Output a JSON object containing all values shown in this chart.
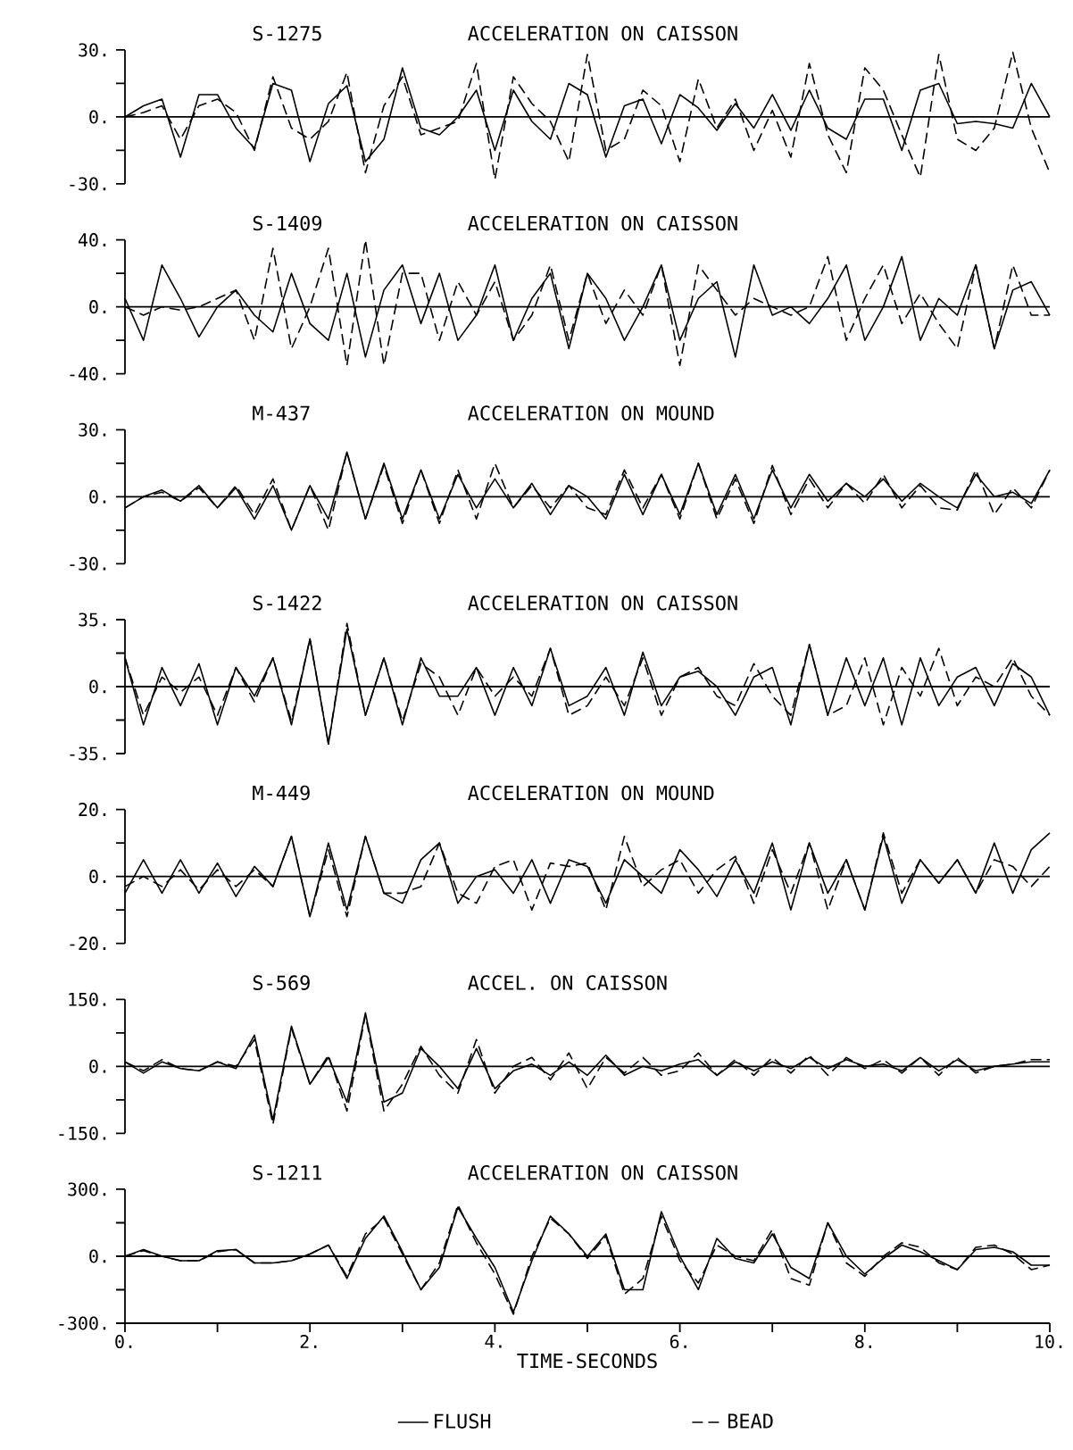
{
  "chart_data": [
    {
      "type": "line",
      "title": "S-1275",
      "subtitle": "ACCELERATION ON CAISSON",
      "x": [
        0,
        0.2,
        0.4,
        0.6,
        0.8,
        1,
        1.2,
        1.4,
        1.6,
        1.8,
        2,
        2.2,
        2.4,
        2.6,
        2.8,
        3,
        3.2,
        3.4,
        3.6,
        3.8,
        4,
        4.2,
        4.4,
        4.6,
        4.8,
        5,
        5.2,
        5.4,
        5.6,
        5.8,
        6,
        6.2,
        6.4,
        6.6,
        6.8,
        7,
        7.2,
        7.4,
        7.6,
        7.8,
        8,
        8.2,
        8.4,
        8.6,
        8.8,
        9,
        9.2,
        9.4,
        9.6,
        9.8,
        10
      ],
      "xlim": [
        0,
        10
      ],
      "ylim": [
        -30,
        30
      ],
      "yticks": [
        {
          "value": -30,
          "label": "-30."
        },
        {
          "value": -15,
          "label": null
        },
        {
          "value": 0,
          "label": "0."
        },
        {
          "value": 15,
          "label": null
        },
        {
          "value": 30,
          "label": "30."
        }
      ],
      "tick_labels": "y",
      "ref_lines": [
        {
          "axis": "y",
          "value": 0
        }
      ],
      "series": [
        {
          "color": "#000000",
          "line_style": "solid",
          "values": [
            0,
            5,
            8,
            -18,
            10,
            10,
            -5,
            -14,
            15,
            12,
            -20,
            6,
            14,
            -20,
            -10,
            22,
            -5,
            -8,
            0,
            12,
            -15,
            12,
            -2,
            -10,
            15,
            10,
            -18,
            5,
            8,
            -12,
            10,
            4,
            -6,
            6,
            -5,
            10,
            -6,
            12,
            -5,
            -10,
            8,
            8,
            -15,
            12,
            15,
            -3,
            -2,
            -3,
            -5,
            15,
            0
          ]
        },
        {
          "color": "#000000",
          "line_style": "dashed",
          "values": [
            0,
            2,
            5,
            -10,
            5,
            8,
            2,
            -15,
            18,
            -5,
            -10,
            -2,
            20,
            -25,
            5,
            18,
            -8,
            -5,
            -2,
            24,
            -28,
            18,
            6,
            -2,
            -20,
            28,
            -15,
            -10,
            12,
            5,
            -20,
            17,
            -5,
            8,
            -15,
            3,
            -18,
            24,
            -8,
            -25,
            22,
            12,
            -8,
            -27,
            28,
            -10,
            -15,
            -5,
            29,
            -5,
            -25
          ]
        }
      ]
    },
    {
      "type": "line",
      "title": "S-1409",
      "subtitle": "ACCELERATION ON CAISSON",
      "x": [
        0,
        0.2,
        0.4,
        0.6,
        0.8,
        1,
        1.2,
        1.4,
        1.6,
        1.8,
        2,
        2.2,
        2.4,
        2.6,
        2.8,
        3,
        3.2,
        3.4,
        3.6,
        3.8,
        4,
        4.2,
        4.4,
        4.6,
        4.8,
        5,
        5.2,
        5.4,
        5.6,
        5.8,
        6,
        6.2,
        6.4,
        6.6,
        6.8,
        7,
        7.2,
        7.4,
        7.6,
        7.8,
        8,
        8.2,
        8.4,
        8.6,
        8.8,
        9,
        9.2,
        9.4,
        9.6,
        9.8,
        10
      ],
      "xlim": [
        0,
        10
      ],
      "ylim": [
        -40,
        40
      ],
      "yticks": [
        {
          "value": -40,
          "label": "-40."
        },
        {
          "value": -20,
          "label": null
        },
        {
          "value": 0,
          "label": "0."
        },
        {
          "value": 20,
          "label": null
        },
        {
          "value": 40,
          "label": "40."
        }
      ],
      "tick_labels": "y",
      "ref_lines": [
        {
          "axis": "y",
          "value": 0
        }
      ],
      "series": [
        {
          "color": "#000000",
          "line_style": "solid",
          "values": [
            5,
            -20,
            25,
            5,
            -18,
            0,
            10,
            -5,
            -15,
            20,
            -10,
            -20,
            20,
            -30,
            10,
            25,
            -10,
            20,
            -20,
            -5,
            25,
            -20,
            5,
            20,
            -25,
            20,
            5,
            -20,
            0,
            25,
            -20,
            5,
            15,
            -30,
            25,
            -5,
            0,
            -10,
            5,
            25,
            -20,
            0,
            30,
            -20,
            5,
            -5,
            25,
            -25,
            10,
            15,
            -5
          ]
        },
        {
          "color": "#000000",
          "line_style": "dashed",
          "values": [
            0,
            -5,
            0,
            -2,
            0,
            5,
            10,
            -20,
            35,
            -25,
            0,
            35,
            -35,
            40,
            -35,
            20,
            20,
            -20,
            15,
            -5,
            15,
            -20,
            -5,
            25,
            -20,
            20,
            -10,
            10,
            -5,
            25,
            -35,
            25,
            10,
            -5,
            5,
            0,
            -5,
            0,
            30,
            -20,
            5,
            25,
            -10,
            8,
            -10,
            -25,
            25,
            -25,
            25,
            -5,
            -5
          ]
        }
      ]
    },
    {
      "type": "line",
      "title": "M-437",
      "subtitle": "ACCELERATION ON MOUND",
      "x": [
        0,
        0.2,
        0.4,
        0.6,
        0.8,
        1,
        1.2,
        1.4,
        1.6,
        1.8,
        2,
        2.2,
        2.4,
        2.6,
        2.8,
        3,
        3.2,
        3.4,
        3.6,
        3.8,
        4,
        4.2,
        4.4,
        4.6,
        4.8,
        5,
        5.2,
        5.4,
        5.6,
        5.8,
        6,
        6.2,
        6.4,
        6.6,
        6.8,
        7,
        7.2,
        7.4,
        7.6,
        7.8,
        8,
        8.2,
        8.4,
        8.6,
        8.8,
        9,
        9.2,
        9.4,
        9.6,
        9.8,
        10
      ],
      "xlim": [
        0,
        10
      ],
      "ylim": [
        -30,
        30
      ],
      "yticks": [
        {
          "value": -30,
          "label": "-30."
        },
        {
          "value": -15,
          "label": null
        },
        {
          "value": 0,
          "label": "0."
        },
        {
          "value": 15,
          "label": null
        },
        {
          "value": 30,
          "label": "30."
        }
      ],
      "tick_labels": "y",
      "ref_lines": [
        {
          "axis": "y",
          "value": 0
        }
      ],
      "series": [
        {
          "color": "#000000",
          "line_style": "solid",
          "values": [
            -5,
            0,
            3,
            -2,
            5,
            -5,
            4,
            -10,
            5,
            -15,
            5,
            -10,
            20,
            -10,
            15,
            -10,
            12,
            -10,
            10,
            -5,
            8,
            -5,
            6,
            -8,
            5,
            0,
            -10,
            10,
            -8,
            10,
            -8,
            15,
            -8,
            10,
            -10,
            12,
            -5,
            10,
            -2,
            6,
            0,
            8,
            -2,
            6,
            0,
            -5,
            10,
            0,
            2,
            -3,
            12
          ]
        },
        {
          "color": "#000000",
          "line_style": "dashed",
          "values": [
            -5,
            0,
            2,
            -2,
            4,
            -5,
            5,
            -8,
            8,
            -15,
            5,
            -15,
            20,
            -10,
            14,
            -12,
            12,
            -12,
            12,
            -10,
            15,
            -5,
            5,
            -5,
            5,
            -5,
            -8,
            12,
            -5,
            10,
            -10,
            15,
            -10,
            8,
            -12,
            14,
            -8,
            8,
            -5,
            6,
            -3,
            10,
            -5,
            5,
            -5,
            -6,
            12,
            -8,
            4,
            -5,
            12
          ]
        }
      ]
    },
    {
      "type": "line",
      "title": "S-1422",
      "subtitle": "ACCELERATION ON CAISSON",
      "x": [
        0,
        0.2,
        0.4,
        0.6,
        0.8,
        1,
        1.2,
        1.4,
        1.6,
        1.8,
        2,
        2.2,
        2.4,
        2.6,
        2.8,
        3,
        3.2,
        3.4,
        3.6,
        3.8,
        4,
        4.2,
        4.4,
        4.6,
        4.8,
        5,
        5.2,
        5.4,
        5.6,
        5.8,
        6,
        6.2,
        6.4,
        6.6,
        6.8,
        7,
        7.2,
        7.4,
        7.6,
        7.8,
        8,
        8.2,
        8.4,
        8.6,
        8.8,
        9,
        9.2,
        9.4,
        9.6,
        9.8,
        10
      ],
      "xlim": [
        0,
        10
      ],
      "ylim": [
        -35,
        35
      ],
      "yticks": [
        {
          "value": -35,
          "label": "-35."
        },
        {
          "value": -17.5,
          "label": null
        },
        {
          "value": 0,
          "label": "0."
        },
        {
          "value": 17.5,
          "label": null
        },
        {
          "value": 35,
          "label": "35."
        }
      ],
      "tick_labels": "y",
      "ref_lines": [
        {
          "axis": "y",
          "value": 0
        }
      ],
      "series": [
        {
          "color": "#000000",
          "line_style": "solid",
          "values": [
            15,
            -20,
            10,
            -10,
            12,
            -20,
            10,
            -5,
            15,
            -20,
            25,
            -30,
            30,
            -15,
            15,
            -20,
            15,
            -5,
            -5,
            10,
            -15,
            10,
            -10,
            20,
            -10,
            -5,
            10,
            -15,
            18,
            -10,
            5,
            8,
            0,
            -15,
            5,
            10,
            -20,
            22,
            -15,
            15,
            -10,
            15,
            -20,
            15,
            -10,
            5,
            10,
            -10,
            12,
            5,
            -15
          ]
        },
        {
          "color": "#000000",
          "line_style": "dashed",
          "values": [
            15,
            -15,
            5,
            -3,
            5,
            -15,
            10,
            -8,
            15,
            -18,
            25,
            -30,
            33,
            -15,
            15,
            -18,
            12,
            5,
            -15,
            10,
            -5,
            5,
            -5,
            20,
            -15,
            -10,
            5,
            -10,
            15,
            -15,
            5,
            10,
            -5,
            -10,
            12,
            -5,
            -15,
            22,
            -15,
            -10,
            15,
            -20,
            10,
            -5,
            20,
            -10,
            5,
            0,
            15,
            -5,
            -15
          ]
        }
      ]
    },
    {
      "type": "line",
      "title": "M-449",
      "subtitle": "ACCELERATION ON MOUND",
      "x": [
        0,
        0.2,
        0.4,
        0.6,
        0.8,
        1,
        1.2,
        1.4,
        1.6,
        1.8,
        2,
        2.2,
        2.4,
        2.6,
        2.8,
        3,
        3.2,
        3.4,
        3.6,
        3.8,
        4,
        4.2,
        4.4,
        4.6,
        4.8,
        5,
        5.2,
        5.4,
        5.6,
        5.8,
        6,
        6.2,
        6.4,
        6.6,
        6.8,
        7,
        7.2,
        7.4,
        7.6,
        7.8,
        8,
        8.2,
        8.4,
        8.6,
        8.8,
        9,
        9.2,
        9.4,
        9.6,
        9.8,
        10
      ],
      "xlim": [
        0,
        10
      ],
      "ylim": [
        -20,
        20
      ],
      "yticks": [
        {
          "value": -20,
          "label": "-20."
        },
        {
          "value": -10,
          "label": null
        },
        {
          "value": 0,
          "label": "0."
        },
        {
          "value": 10,
          "label": null
        },
        {
          "value": 20,
          "label": "20."
        }
      ],
      "tick_labels": "y",
      "ref_lines": [
        {
          "axis": "y",
          "value": 0
        }
      ],
      "series": [
        {
          "color": "#000000",
          "line_style": "solid",
          "values": [
            -5,
            5,
            -5,
            5,
            -5,
            4,
            -6,
            3,
            -3,
            12,
            -12,
            10,
            -10,
            12,
            -5,
            -8,
            5,
            10,
            -8,
            0,
            2,
            -5,
            5,
            -8,
            5,
            3,
            -8,
            5,
            0,
            -5,
            8,
            2,
            -6,
            5,
            -5,
            10,
            -10,
            10,
            -5,
            5,
            -10,
            12,
            -8,
            5,
            -2,
            5,
            -5,
            10,
            -5,
            8,
            13
          ]
        },
        {
          "color": "#000000",
          "line_style": "dashed",
          "values": [
            -3,
            0,
            -3,
            2,
            -4,
            2,
            -3,
            2,
            -3,
            12,
            -12,
            8,
            -12,
            12,
            -5,
            -5,
            -3,
            10,
            -5,
            -8,
            3,
            5,
            -10,
            4,
            3,
            4,
            -10,
            12,
            -3,
            2,
            5,
            -5,
            2,
            6,
            -8,
            8,
            -5,
            10,
            -10,
            5,
            -10,
            13,
            -5,
            5,
            -2,
            5,
            -5,
            5,
            3,
            -3,
            3
          ]
        }
      ]
    },
    {
      "type": "line",
      "title": "S-569",
      "subtitle": "ACCEL. ON CAISSON",
      "x": [
        0,
        0.2,
        0.4,
        0.6,
        0.8,
        1,
        1.2,
        1.4,
        1.6,
        1.8,
        2,
        2.2,
        2.4,
        2.6,
        2.8,
        3,
        3.2,
        3.4,
        3.6,
        3.8,
        4,
        4.2,
        4.4,
        4.6,
        4.8,
        5,
        5.2,
        5.4,
        5.6,
        5.8,
        6,
        6.2,
        6.4,
        6.6,
        6.8,
        7,
        7.2,
        7.4,
        7.6,
        7.8,
        8,
        8.2,
        8.4,
        8.6,
        8.8,
        9,
        9.2,
        9.4,
        9.6,
        9.8,
        10
      ],
      "xlim": [
        0,
        10
      ],
      "ylim": [
        -150,
        150
      ],
      "yticks": [
        {
          "value": -150,
          "label": "-150."
        },
        {
          "value": -75,
          "label": null
        },
        {
          "value": 0,
          "label": "0."
        },
        {
          "value": 75,
          "label": null
        },
        {
          "value": 150,
          "label": "150."
        }
      ],
      "tick_labels": "y",
      "ref_lines": [
        {
          "axis": "y",
          "value": 0
        }
      ],
      "series": [
        {
          "color": "#000000",
          "line_style": "solid",
          "values": [
            10,
            -15,
            10,
            -5,
            -10,
            10,
            -5,
            70,
            -120,
            90,
            -40,
            20,
            -80,
            120,
            -80,
            -60,
            40,
            0,
            -50,
            40,
            -50,
            -10,
            5,
            -20,
            10,
            -20,
            25,
            -20,
            0,
            -10,
            5,
            15,
            -20,
            10,
            -10,
            10,
            -5,
            20,
            -5,
            15,
            0,
            5,
            -10,
            20,
            -10,
            15,
            -10,
            0,
            5,
            10,
            10
          ]
        },
        {
          "color": "#000000",
          "line_style": "dashed",
          "values": [
            10,
            -10,
            15,
            -5,
            -10,
            10,
            0,
            60,
            -130,
            85,
            -40,
            25,
            -100,
            115,
            -100,
            -40,
            45,
            -20,
            -60,
            60,
            -60,
            0,
            20,
            -30,
            30,
            -50,
            20,
            -15,
            20,
            -20,
            -10,
            30,
            -20,
            15,
            -20,
            20,
            -15,
            25,
            -20,
            20,
            -5,
            15,
            -15,
            20,
            -20,
            20,
            -15,
            0,
            5,
            15,
            15
          ]
        }
      ]
    },
    {
      "type": "line",
      "title": "S-1211",
      "subtitle": "ACCELERATION ON CAISSON",
      "xlabel": "TIME-SECONDS",
      "x": [
        0,
        0.2,
        0.4,
        0.6,
        0.8,
        1,
        1.2,
        1.4,
        1.6,
        1.8,
        2,
        2.2,
        2.4,
        2.6,
        2.8,
        3,
        3.2,
        3.4,
        3.6,
        3.8,
        4,
        4.2,
        4.4,
        4.6,
        4.8,
        5,
        5.2,
        5.4,
        5.6,
        5.8,
        6,
        6.2,
        6.4,
        6.6,
        6.8,
        7,
        7.2,
        7.4,
        7.6,
        7.8,
        8,
        8.2,
        8.4,
        8.6,
        8.8,
        9,
        9.2,
        9.4,
        9.6,
        9.8,
        10
      ],
      "xlim": [
        0,
        10
      ],
      "xticks": [
        {
          "value": 0,
          "label": "0."
        },
        {
          "value": 1,
          "label": null
        },
        {
          "value": 2,
          "label": "2."
        },
        {
          "value": 3,
          "label": null
        },
        {
          "value": 4,
          "label": "4."
        },
        {
          "value": 5,
          "label": null
        },
        {
          "value": 6,
          "label": "6."
        },
        {
          "value": 7,
          "label": null
        },
        {
          "value": 8,
          "label": "8."
        },
        {
          "value": 9,
          "label": null
        },
        {
          "value": 10,
          "label": "10."
        }
      ],
      "ylim": [
        -300,
        300
      ],
      "yticks": [
        {
          "value": -300,
          "label": "-300."
        },
        {
          "value": -150,
          "label": null
        },
        {
          "value": 0,
          "label": "0."
        },
        {
          "value": 150,
          "label": null
        },
        {
          "value": 300,
          "label": "300."
        }
      ],
      "ref_lines": [
        {
          "axis": "y",
          "value": 0
        }
      ],
      "legend": "bottom",
      "series": [
        {
          "name": "FLUSH",
          "color": "#000000",
          "line_style": "solid",
          "values": [
            0,
            30,
            0,
            -20,
            -20,
            25,
            30,
            -30,
            -30,
            -20,
            10,
            50,
            -100,
            80,
            180,
            20,
            -150,
            -50,
            220,
            80,
            -50,
            -250,
            -20,
            180,
            100,
            0,
            100,
            -150,
            -150,
            200,
            0,
            -150,
            80,
            -10,
            -30,
            100,
            -50,
            -100,
            150,
            0,
            -80,
            -10,
            50,
            20,
            -20,
            -60,
            30,
            40,
            20,
            -40,
            -40
          ]
        },
        {
          "name": "BEAD",
          "color": "#000000",
          "line_style": "dashed",
          "values": [
            0,
            25,
            0,
            -20,
            -20,
            20,
            30,
            -30,
            -30,
            -20,
            10,
            50,
            -90,
            100,
            170,
            10,
            -150,
            -30,
            230,
            60,
            -80,
            -260,
            0,
            170,
            100,
            -10,
            90,
            -170,
            -100,
            180,
            -20,
            -120,
            50,
            0,
            -20,
            120,
            -100,
            -130,
            150,
            -30,
            -90,
            0,
            60,
            40,
            -30,
            -60,
            40,
            50,
            10,
            -60,
            -40
          ]
        }
      ]
    }
  ]
}
